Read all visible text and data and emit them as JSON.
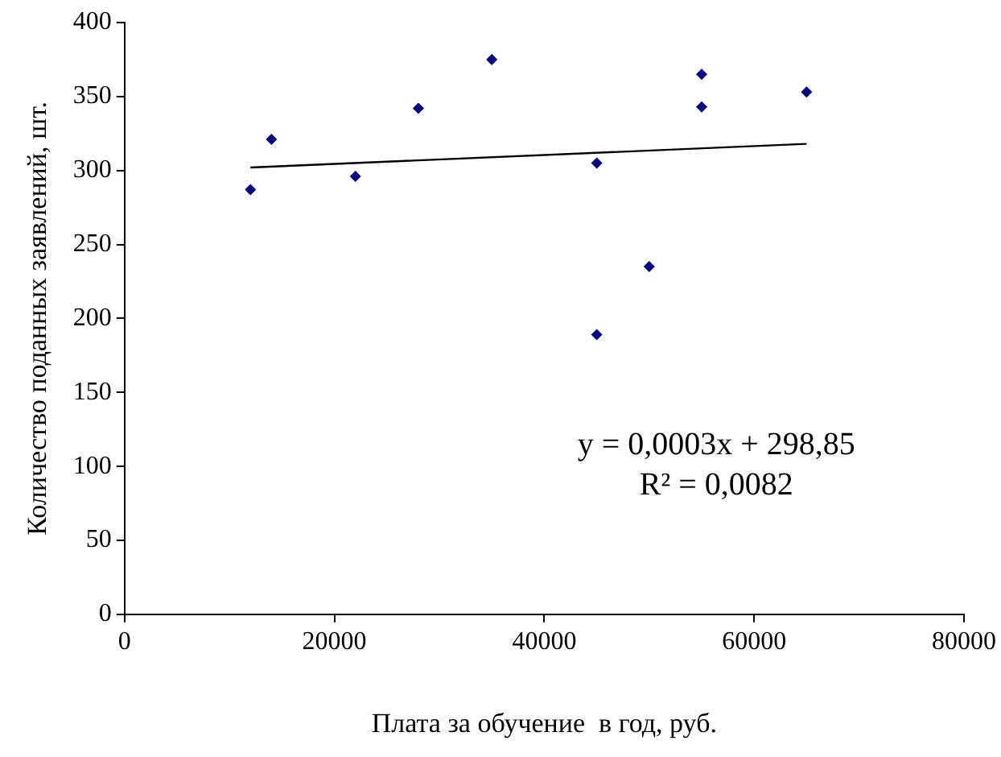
{
  "chart_data": {
    "type": "scatter",
    "xlabel": "Плата за обучение  в год, руб.",
    "ylabel": "Количество поданных заявлений, шт.",
    "xlim": [
      0,
      80000
    ],
    "xticks": [
      0,
      20000,
      40000,
      60000,
      80000
    ],
    "ylim": [
      0,
      400
    ],
    "yticks": [
      0,
      50,
      100,
      150,
      200,
      250,
      300,
      350,
      400
    ],
    "grid": false,
    "legend": false,
    "marker": "diamond",
    "series": [
      {
        "type": "scatter",
        "color": "#000080",
        "x": [
          12000,
          14000,
          22000,
          28000,
          35000,
          45000,
          45000,
          50000,
          55000,
          55000,
          65000
        ],
        "values": [
          287,
          321,
          296,
          342,
          375,
          305,
          189,
          235,
          365,
          343,
          353
        ]
      },
      {
        "type": "line",
        "color": "#000000",
        "x": [
          12000,
          65000
        ],
        "values": [
          302,
          318
        ],
        "marker": "none",
        "line_style": "solid"
      }
    ],
    "annotations": [
      "y = 0,0003x + 298,85",
      "R² = 0,0082"
    ]
  }
}
